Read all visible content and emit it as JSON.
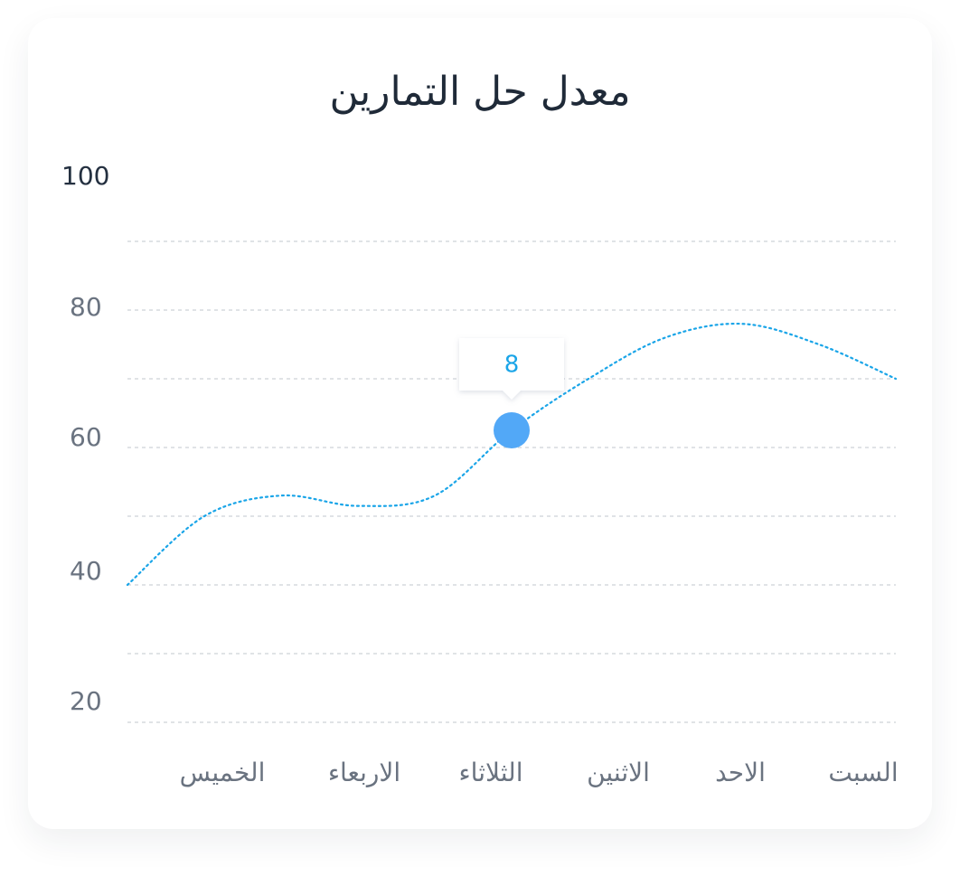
{
  "chart_data": {
    "type": "line",
    "title": "معدل حل التمارين",
    "x_categories": [
      "الخميس",
      "الاربعاء",
      "الثلاثاء",
      "الاثنين",
      "الاحد",
      "السبت"
    ],
    "y_ticks": [
      "100",
      "80",
      "60",
      "40",
      "20"
    ],
    "ylim": [
      20,
      90
    ],
    "grid": true,
    "series": [
      {
        "x": [
          0,
          0.5,
          1,
          1.5,
          2,
          2.5,
          3,
          3.5,
          4,
          4.5,
          5
        ],
        "y": [
          40,
          50,
          53,
          51.5,
          53,
          62.5,
          70,
          76,
          78,
          75,
          70
        ]
      }
    ],
    "highlight": {
      "x": 2.5,
      "y": 62.5,
      "label": "8"
    },
    "colors": {
      "line": "#1aa5e8",
      "marker": "#52a8f7",
      "grid": "#cdd2d8"
    }
  }
}
